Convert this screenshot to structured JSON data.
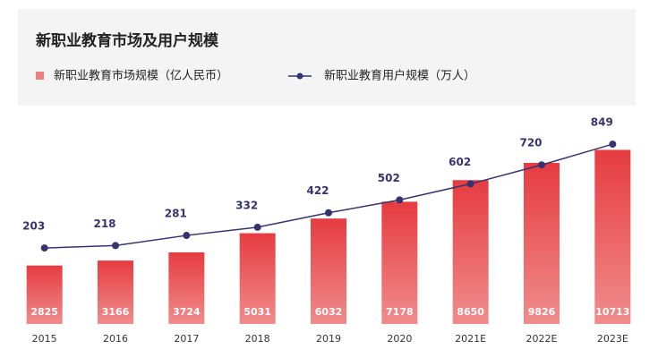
{
  "chart_data": {
    "type": "bar_line",
    "title": "新职业教育市场及用户规模",
    "categories": [
      "2015",
      "2016",
      "2017",
      "2018",
      "2019",
      "2020",
      "2021E",
      "2022E",
      "2023E"
    ],
    "series": [
      {
        "name": "新职业教育市场规模（亿人民币）",
        "type": "bar",
        "color": "#e8474a",
        "axis": "y",
        "values": [
          2825,
          3166,
          3724,
          5031,
          6032,
          7178,
          8650,
          9826,
          10713
        ]
      },
      {
        "name": "新职业教育用户规模（万人）",
        "type": "line",
        "color": "#37336e",
        "axis": "y2",
        "values": [
          203,
          218,
          281,
          332,
          422,
          502,
          602,
          720,
          849
        ]
      }
    ],
    "ylim": [
      -1160,
      13000
    ],
    "y2lim": [
      -270,
      1022
    ],
    "legend": "top-left"
  }
}
